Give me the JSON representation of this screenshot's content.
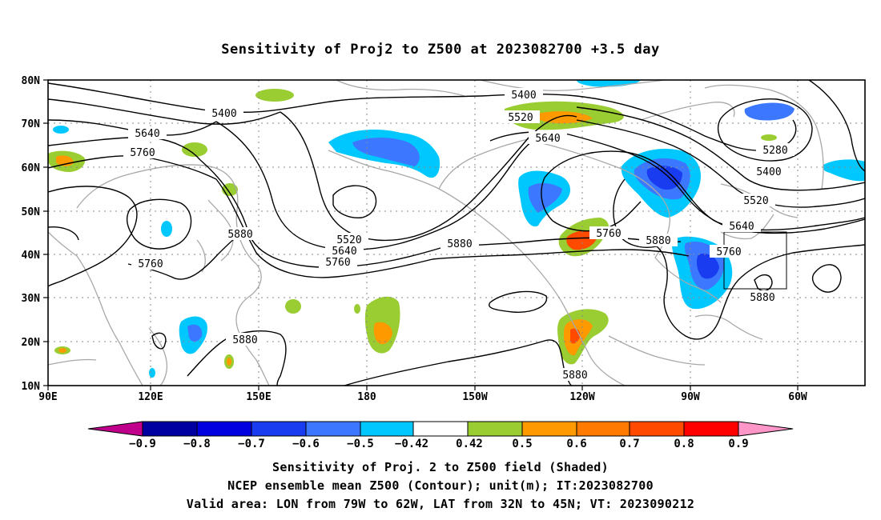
{
  "title": "Sensitivity of Proj2 to Z500 at 2023082700 +3.5 day",
  "map": {
    "lon_labels": [
      "90E",
      "120E",
      "150E",
      "180",
      "150W",
      "120W",
      "90W",
      "60W"
    ],
    "lat_labels": [
      "80N",
      "70N",
      "60N",
      "50N",
      "40N",
      "30N",
      "20N",
      "10N"
    ],
    "grid": "dotted lines every 30° longitude and 10° latitude",
    "contour_labels": [
      "5400",
      "5640",
      "5760",
      "5760",
      "5880",
      "5880",
      "5520",
      "5640",
      "5760",
      "5400",
      "5520",
      "5640",
      "5880",
      "5760",
      "5880",
      "5880",
      "5280",
      "5400",
      "5520",
      "5640",
      "5760",
      "5880"
    ],
    "colors": {
      "coast": "#a8a8a8",
      "contour": "#000000",
      "green": "#9acd32",
      "orange": "#ff9900",
      "cyan": "#00c8ff",
      "blue": "#3c78ff",
      "deep_blue": "#1a3cf0"
    }
  },
  "colorbar": {
    "ticks": [
      "−0.9",
      "−0.8",
      "−0.7",
      "−0.6",
      "−0.5",
      "−0.42",
      "0.42",
      "0.5",
      "0.6",
      "0.7",
      "0.8",
      "0.9"
    ],
    "colors": [
      "#c0008c",
      "#0000a0",
      "#0000e0",
      "#1a3cf0",
      "#3c78ff",
      "#1e9aff",
      "#00c8ff",
      "#ffffff",
      "#9acd32",
      "#ff9900",
      "#ff7a00",
      "#ff4a00",
      "#ff0000",
      "#ff96c8"
    ]
  },
  "captions": [
    "Sensitivity of Proj. 2 to Z500 field (Shaded)",
    "NCEP ensemble mean Z500 (Contour); unit(m); IT:2023082700",
    "Valid area: LON from 79W to 62W, LAT from 32N to 45N; VT: 2023090212"
  ]
}
